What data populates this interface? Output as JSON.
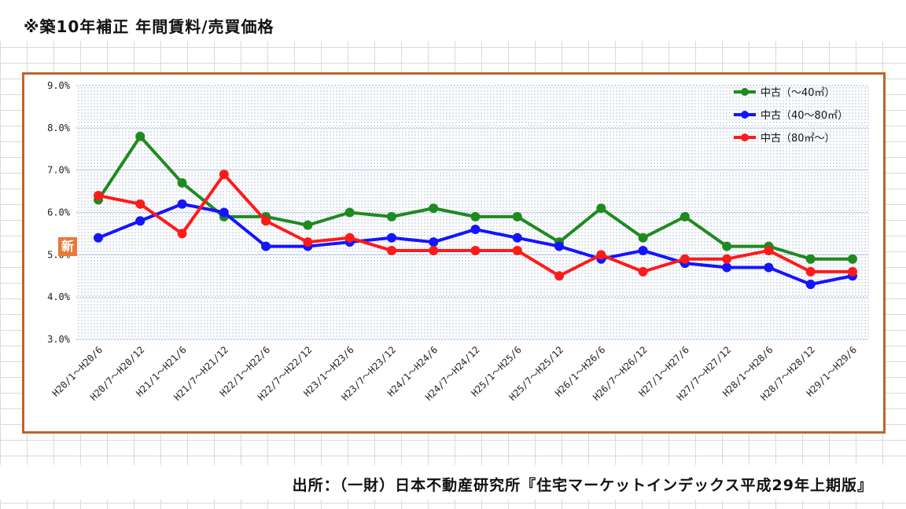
{
  "header": {
    "title": "※築10年補正 年間賃料/売買価格"
  },
  "footer": {
    "source": "出所：（一財）日本不動産研究所『住宅マーケットインデックス平成29年上期版』"
  },
  "badge": {
    "label": "新"
  },
  "colors": {
    "frame": "#c0652a",
    "green": "#1f8a1f",
    "blue": "#1414ff",
    "red": "#ff1a1a",
    "badge": "#e57a3a"
  },
  "chart_data": {
    "type": "line",
    "categories": [
      "H20/1～H20/6",
      "H20/7～H20/12",
      "H21/1～H21/6",
      "H21/7～H21/12",
      "H22/1～H22/6",
      "H22/7～H22/12",
      "H23/1～H23/6",
      "H23/7～H23/12",
      "H24/1～H24/6",
      "H24/7～H24/12",
      "H25/1～H25/6",
      "H25/7～H25/12",
      "H26/1～H26/6",
      "H26/7～H26/12",
      "H27/1～H27/6",
      "H27/7～H27/12",
      "H28/1～H28/6",
      "H28/7～H28/12",
      "H29/1～H29/6"
    ],
    "series": [
      {
        "name": "中古（～40㎡）",
        "color": "#1f8a1f",
        "values": [
          6.3,
          7.8,
          6.7,
          5.9,
          5.9,
          5.7,
          6.0,
          5.9,
          6.1,
          5.9,
          5.9,
          5.3,
          6.1,
          5.4,
          5.9,
          5.2,
          5.2,
          4.9,
          4.9
        ]
      },
      {
        "name": "中古（40～80㎡）",
        "color": "#1414ff",
        "values": [
          5.4,
          5.8,
          6.2,
          6.0,
          5.2,
          5.2,
          5.3,
          5.4,
          5.3,
          5.6,
          5.4,
          5.2,
          4.9,
          5.1,
          4.8,
          4.7,
          4.7,
          4.3,
          4.5
        ]
      },
      {
        "name": "中古（80㎡～）",
        "color": "#ff1a1a",
        "values": [
          6.4,
          6.2,
          5.5,
          6.9,
          5.8,
          5.3,
          5.4,
          5.1,
          5.1,
          5.1,
          5.1,
          4.5,
          5.0,
          4.6,
          4.9,
          4.9,
          5.1,
          4.6,
          4.6
        ]
      }
    ],
    "yticks": [
      "9.0%",
      "8.0%",
      "7.0%",
      "6.0%",
      "5.0%",
      "4.0%",
      "3.0%"
    ],
    "ylim": [
      3.0,
      9.0
    ],
    "grid": true,
    "legend_position": "top-right",
    "title": "",
    "xlabel": "",
    "ylabel": ""
  }
}
